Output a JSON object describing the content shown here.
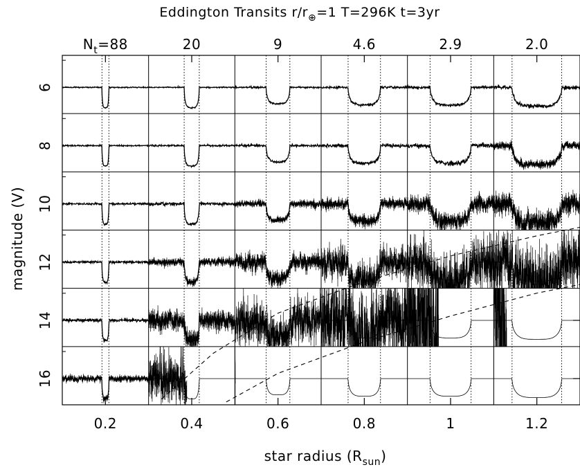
{
  "chart_data": {
    "type": "scatter",
    "title_main": "Eddington Transits r/r",
    "title_sub": "⊕",
    "title_rest": "=1 T=296K t=3yr",
    "xlabel_main": "star radius (R",
    "xlabel_sub": "sun",
    "xlabel_close": ")",
    "ylabel": "magnitude (V)",
    "xlim": [
      0.1,
      1.3
    ],
    "x_ticks": [
      "0.2",
      "0.4",
      "0.6",
      "0.8",
      "1",
      "1.2"
    ],
    "x_tick_values": [
      0.2,
      0.4,
      0.6,
      0.8,
      1.0,
      1.2
    ],
    "magnitudes": [
      6,
      8,
      10,
      12,
      14,
      16
    ],
    "y_tick_labels": [
      "6",
      "8",
      "10",
      "12",
      "14",
      "16"
    ],
    "grid": true,
    "top_axis": {
      "prefix": "N",
      "prefix_sub": "t",
      "first_value": "=88",
      "labels": [
        "20",
        "9",
        "4.6",
        "2.9",
        "2.0"
      ]
    },
    "transit_count_by_radius": [
      {
        "radius": 0.2,
        "n_transits": 88
      },
      {
        "radius": 0.4,
        "n_transits": 20
      },
      {
        "radius": 0.6,
        "n_transits": 9
      },
      {
        "radius": 0.8,
        "n_transits": 4.6
      },
      {
        "radius": 1.0,
        "n_transits": 2.9
      },
      {
        "radius": 1.2,
        "n_transits": 2.0
      }
    ],
    "transit_duration_r_sun": [
      0.016,
      0.035,
      0.055,
      0.075,
      0.095,
      0.115
    ],
    "transit_depth_mag_visual": [
      0.75,
      0.75,
      0.6,
      0.65,
      0.65,
      0.7
    ],
    "noise_sigma_mag": [
      [
        0.01,
        0.01,
        0.015,
        0.02,
        0.025,
        0.035
      ],
      [
        0.012,
        0.015,
        0.02,
        0.03,
        0.04,
        0.06
      ],
      [
        0.015,
        0.03,
        0.05,
        0.08,
        0.12,
        0.16
      ],
      [
        0.02,
        0.06,
        0.12,
        0.22,
        0.35,
        0.45
      ],
      [
        0.03,
        0.15,
        0.3,
        0.6,
        1.2,
        1.5
      ],
      [
        0.05,
        0.35,
        0.8,
        2.0,
        3.0,
        3.0
      ]
    ],
    "detection_limit_curves": [
      {
        "x": [
          0.33,
          0.45,
          0.6,
          0.8,
          1.0,
          1.2,
          1.3
        ],
        "y": [
          17.0,
          15.4,
          14.0,
          12.9,
          12.0,
          11.3,
          11.0
        ]
      },
      {
        "x": [
          0.48,
          0.6,
          0.8,
          1.0,
          1.2,
          1.3
        ],
        "y": [
          17.1,
          16.1,
          15.0,
          14.1,
          13.3,
          13.0
        ]
      }
    ]
  }
}
